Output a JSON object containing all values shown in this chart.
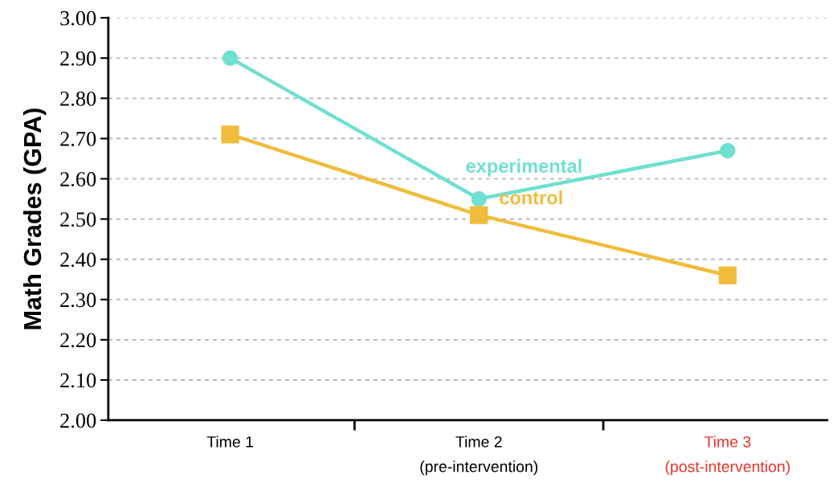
{
  "chart_data": {
    "type": "line",
    "ylabel": "Math Grades (GPA)",
    "categories": [
      "Time 1",
      "Time 2\n(pre-intervention)",
      "Time 3\n(post-intervention)"
    ],
    "series": [
      {
        "name": "experimental",
        "color": "#6fe0d0",
        "marker": "circle",
        "values": [
          2.9,
          2.55,
          2.67
        ]
      },
      {
        "name": "control",
        "color": "#f0bc3c",
        "marker": "square",
        "values": [
          2.71,
          2.51,
          2.36
        ]
      }
    ],
    "ylim": [
      2.0,
      3.0
    ],
    "yticks": [
      {
        "value": 2.0,
        "label": "2.00"
      },
      {
        "value": 2.1,
        "label": "2.10"
      },
      {
        "value": 2.2,
        "label": "2.20"
      },
      {
        "value": 2.3,
        "label": "2.30"
      },
      {
        "value": 2.4,
        "label": "2.40"
      },
      {
        "value": 2.5,
        "label": "2.50"
      },
      {
        "value": 2.6,
        "label": "2.60"
      },
      {
        "value": 2.7,
        "label": "2.70"
      },
      {
        "value": 2.8,
        "label": "2.80"
      },
      {
        "value": 2.9,
        "label": "2.90"
      },
      {
        "value": 3.0,
        "label": "3.00"
      }
    ],
    "grid": "y",
    "legend": false,
    "line_style": "solid"
  }
}
